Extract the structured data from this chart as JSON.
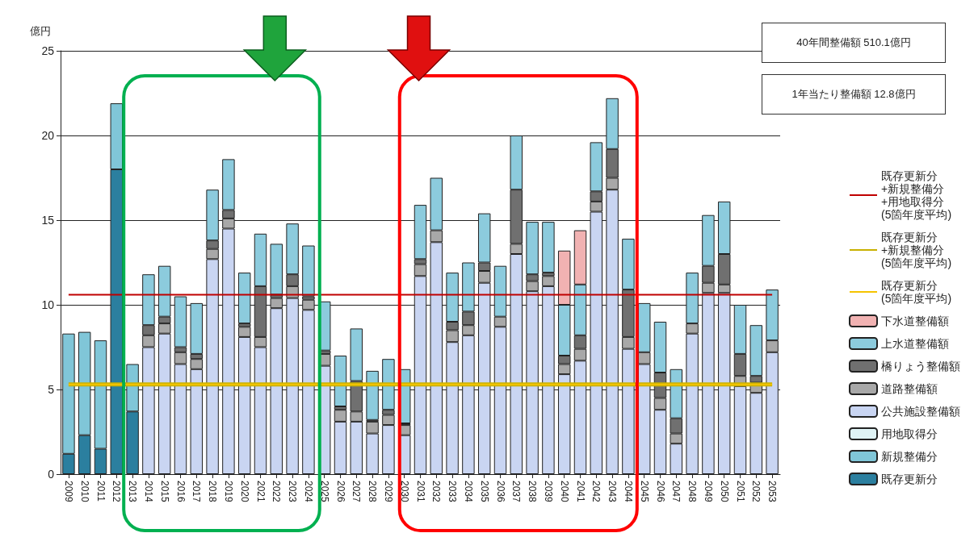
{
  "chart_data": {
    "type": "bar",
    "stacked": true,
    "ylabel": "億円",
    "categories": [
      "2009",
      "2010",
      "2011",
      "2012",
      "2013",
      "2014",
      "2015",
      "2016",
      "2017",
      "2018",
      "2019",
      "2020",
      "2021",
      "2022",
      "2023",
      "2024",
      "2025",
      "2026",
      "2027",
      "2028",
      "2029",
      "2030",
      "2031",
      "2032",
      "2033",
      "2034",
      "2035",
      "2036",
      "2037",
      "2038",
      "2039",
      "2040",
      "2041",
      "2042",
      "2043",
      "2044",
      "2045",
      "2046",
      "2047",
      "2048",
      "2049",
      "2050",
      "2051",
      "2052",
      "2053"
    ],
    "series": [
      {
        "name": "既存更新分",
        "color": "#2b7f9f",
        "values": [
          1.2,
          2.3,
          1.5,
          18.0,
          3.7,
          null,
          null,
          null,
          null,
          null,
          null,
          null,
          null,
          null,
          null,
          null,
          null,
          null,
          null,
          null,
          null,
          null,
          null,
          null,
          null,
          null,
          null,
          null,
          null,
          null,
          null,
          null,
          null,
          null,
          null,
          null,
          null,
          null,
          null,
          null,
          null,
          null,
          null,
          null,
          null
        ]
      },
      {
        "name": "新規整備分",
        "color": "#80c6d8",
        "values": [
          7.1,
          6.1,
          6.4,
          3.9,
          2.8,
          null,
          null,
          null,
          null,
          null,
          null,
          null,
          null,
          null,
          null,
          null,
          null,
          null,
          null,
          null,
          null,
          null,
          null,
          null,
          null,
          null,
          null,
          null,
          null,
          null,
          null,
          null,
          null,
          null,
          null,
          null,
          null,
          null,
          null,
          null,
          null,
          null,
          null,
          null,
          null
        ]
      },
      {
        "name": "用地取得分",
        "color": "#dff3f5",
        "values": [
          null,
          null,
          null,
          null,
          null,
          null,
          null,
          null,
          null,
          null,
          null,
          null,
          null,
          null,
          null,
          null,
          null,
          null,
          null,
          null,
          null,
          null,
          null,
          null,
          null,
          null,
          null,
          null,
          null,
          null,
          null,
          null,
          null,
          null,
          null,
          null,
          null,
          null,
          null,
          null,
          null,
          null,
          null,
          null,
          null
        ]
      },
      {
        "name": "公共施設整備額",
        "color": "#c9d5f2",
        "values": [
          null,
          null,
          null,
          null,
          null,
          7.5,
          8.3,
          6.5,
          6.2,
          12.7,
          14.5,
          8.1,
          7.5,
          9.8,
          10.4,
          9.7,
          6.4,
          3.1,
          3.1,
          2.4,
          2.9,
          2.3,
          11.7,
          13.7,
          7.8,
          8.2,
          11.3,
          8.7,
          13.0,
          10.8,
          11.1,
          5.9,
          6.7,
          15.5,
          16.8,
          7.4,
          6.5,
          3.8,
          1.8,
          8.3,
          10.7,
          10.7,
          5.2,
          4.8,
          7.2
        ]
      },
      {
        "name": "道路整備額",
        "color": "#a8a8a8",
        "values": [
          null,
          null,
          null,
          null,
          null,
          0.7,
          0.6,
          0.7,
          0.6,
          0.6,
          0.6,
          0.6,
          0.6,
          0.6,
          0.7,
          0.6,
          0.7,
          0.7,
          0.6,
          0.7,
          0.6,
          0.6,
          0.7,
          0.7,
          0.7,
          0.6,
          0.7,
          0.6,
          0.6,
          0.6,
          0.6,
          0.6,
          0.7,
          0.6,
          0.7,
          0.7,
          0.7,
          0.7,
          0.6,
          0.6,
          0.6,
          0.5,
          0.6,
          0.6,
          0.7
        ]
      },
      {
        "name": "橋りょう整備額",
        "color": "#707070",
        "values": [
          null,
          null,
          null,
          null,
          null,
          0.6,
          0.4,
          0.3,
          0.3,
          0.5,
          0.5,
          0.2,
          3.0,
          0.2,
          0.7,
          0.2,
          0.2,
          0.2,
          1.8,
          0.1,
          0.3,
          0.1,
          0.3,
          null,
          0.5,
          0.8,
          0.5,
          null,
          3.2,
          0.4,
          0.2,
          0.5,
          0.8,
          0.6,
          1.7,
          2.8,
          null,
          1.5,
          0.9,
          null,
          1.0,
          1.8,
          1.3,
          0.4,
          null
        ]
      },
      {
        "name": "上水道整備額",
        "color": "#8ccbdd",
        "values": [
          null,
          null,
          null,
          null,
          null,
          3.0,
          3.0,
          3.0,
          3.0,
          3.0,
          3.0,
          3.0,
          3.1,
          3.0,
          3.0,
          3.0,
          2.9,
          3.0,
          3.1,
          2.9,
          3.0,
          3.2,
          3.2,
          3.1,
          2.9,
          2.9,
          2.9,
          3.0,
          3.2,
          3.1,
          3.0,
          3.0,
          3.0,
          2.9,
          3.0,
          3.0,
          2.9,
          3.0,
          2.9,
          3.0,
          3.0,
          3.1,
          2.9,
          3.0,
          3.0
        ]
      },
      {
        "name": "下水道整備額",
        "color": "#f1b2b2",
        "values": [
          null,
          null,
          null,
          null,
          null,
          null,
          null,
          null,
          null,
          null,
          null,
          null,
          null,
          null,
          null,
          null,
          null,
          null,
          null,
          null,
          null,
          null,
          null,
          null,
          null,
          null,
          null,
          null,
          null,
          null,
          null,
          3.2,
          3.2,
          null,
          null,
          null,
          null,
          null,
          null,
          null,
          null,
          null,
          null,
          null,
          null
        ]
      },
      {
        "name": "既存更新分\n+新規整備分\n+用地取得分\n(5箇年度平均)",
        "type": "line",
        "color": "#c00000",
        "values": [
          10.6,
          10.6,
          10.6,
          10.6,
          10.6,
          10.6,
          10.6,
          10.6,
          10.6,
          10.6,
          10.6,
          10.6,
          10.6,
          10.6,
          10.6,
          10.6,
          10.6,
          10.6,
          10.6,
          10.6,
          10.6,
          10.6,
          10.6,
          10.6,
          10.6,
          10.6,
          10.6,
          10.6,
          10.6,
          10.6,
          10.6,
          10.6,
          10.6,
          10.6,
          10.6,
          10.6,
          10.6,
          10.6,
          10.6,
          10.6,
          10.6,
          10.6,
          10.6,
          10.6,
          10.6
        ]
      },
      {
        "name": "既存更新分\n+新規整備分\n(5箇年度平均)",
        "type": "line",
        "color": "#c8b000",
        "values": [
          5.3,
          5.3,
          5.3,
          5.3,
          5.3,
          5.3,
          5.3,
          5.3,
          5.3,
          5.3,
          5.3,
          5.3,
          5.3,
          5.3,
          5.3,
          5.3,
          5.3,
          5.3,
          5.3,
          5.3,
          5.3,
          5.3,
          5.3,
          5.3,
          5.3,
          5.3,
          5.3,
          5.3,
          5.3,
          5.3,
          5.3,
          5.3,
          5.3,
          5.3,
          5.3,
          5.3,
          5.3,
          5.3,
          5.3,
          5.3,
          5.3,
          5.3,
          5.3,
          5.3,
          5.3
        ]
      },
      {
        "name": "既存更新分\n(5箇年度平均)",
        "type": "line",
        "color": "#f5c400",
        "values": [
          5.3,
          5.3,
          5.3,
          5.3,
          5.3,
          5.3,
          5.3,
          5.3,
          5.3,
          5.3,
          5.3,
          5.3,
          5.3,
          5.3,
          5.3,
          5.3,
          5.3,
          5.3,
          5.3,
          5.3,
          5.3,
          5.3,
          5.3,
          5.3,
          5.3,
          5.3,
          5.3,
          5.3,
          5.3,
          5.3,
          5.3,
          5.3,
          5.3,
          5.3,
          5.3,
          5.3,
          5.3,
          5.3,
          5.3,
          5.3,
          5.3,
          5.3,
          5.3,
          5.3,
          5.3
        ]
      }
    ],
    "ylim": [
      0,
      25
    ],
    "yticks": [
      0,
      5,
      10,
      15,
      20,
      25
    ],
    "grid": "y",
    "legend": "right",
    "marker": "none",
    "line_style": "solid",
    "annotations": [
      "40年間整備額 510.1億円",
      "1年当たり整備額 12.8億円"
    ]
  }
}
